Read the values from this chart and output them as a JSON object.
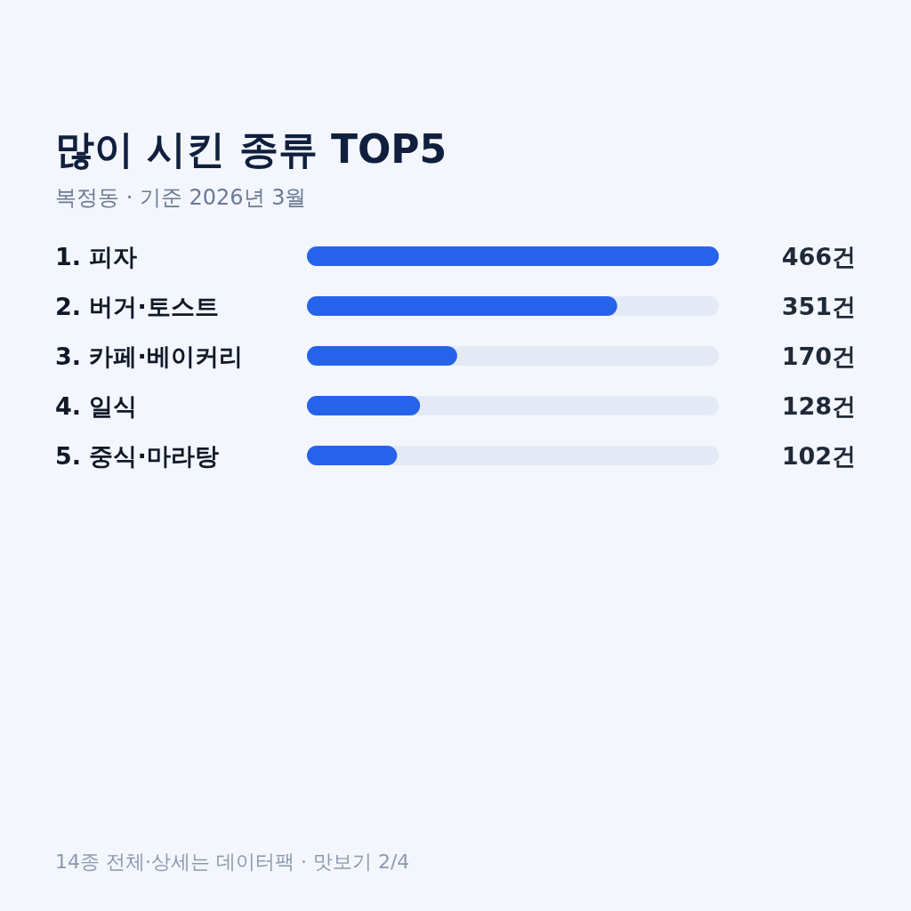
{
  "chart_data": {
    "type": "bar",
    "orientation": "horizontal",
    "title": "많이 시킨 종류 TOP5",
    "subtitle": "복정동 · 기준 2026년 3월",
    "categories": [
      "1. 피자",
      "2. 버거·토스트",
      "3. 카페·베이커리",
      "4. 일식",
      "5. 중식·마라탕"
    ],
    "values": [
      466,
      351,
      170,
      128,
      102
    ],
    "value_labels": [
      "466건",
      "351건",
      "170건",
      "128건",
      "102건"
    ],
    "color": "#2563eb",
    "annotations": [
      "14종 전체·상세는 데이터팩 · 맛보기 2/4"
    ]
  }
}
